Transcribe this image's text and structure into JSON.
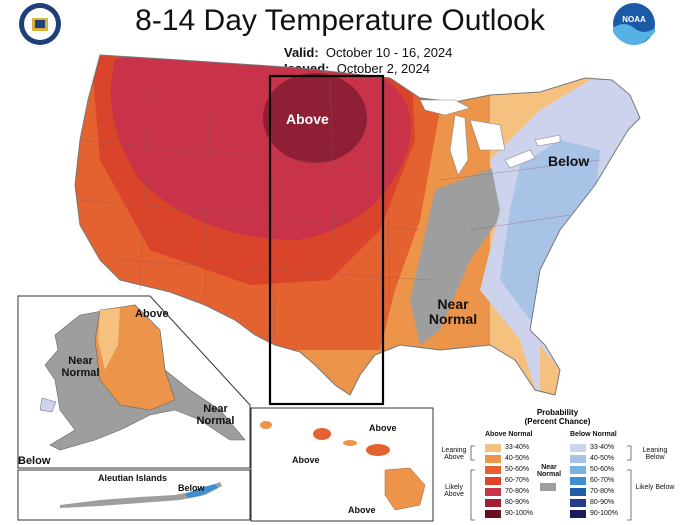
{
  "header": {
    "title": "8-14 Day Temperature Outlook",
    "valid_label": "Valid:",
    "valid_value": "October 10 - 16, 2024",
    "issued_label": "Issued:",
    "issued_value": "October 2, 2024",
    "left_logo_icon": "doc-seal-icon",
    "right_logo_icon": "noaa-logo-icon",
    "right_logo_text": "NOAA"
  },
  "map_labels": {
    "conus_above": "Above",
    "conus_below": "Below",
    "conus_near_normal": "Near Normal",
    "alaska_above": "Above",
    "alaska_near_normal_1": "Near Normal",
    "alaska_near_normal_2": "Near Normal",
    "alaska_below": "Below",
    "aleutian_title": "Aleutian Islands",
    "aleutian_below": "Below",
    "hawaii_above_1": "Above",
    "hawaii_above_2": "Above",
    "hawaii_above_3": "Above"
  },
  "legend": {
    "title": "Probability",
    "subtitle": "(Percent Chance)",
    "above_header": "Above Normal",
    "below_header": "Below Normal",
    "near_normal_label": "Near Normal",
    "leaning_above": "Leaning Above",
    "likely_above": "Likely Above",
    "leaning_below": "Leaning Below",
    "likely_below": "Likely Below",
    "above_bins": [
      {
        "range": "33-40%",
        "color": "#f6c07e"
      },
      {
        "range": "40-50%",
        "color": "#ec9449"
      },
      {
        "range": "50-60%",
        "color": "#e4622f"
      },
      {
        "range": "60-70%",
        "color": "#d9442b"
      },
      {
        "range": "70-80%",
        "color": "#c8334a"
      },
      {
        "range": "80-90%",
        "color": "#a01f34"
      },
      {
        "range": "90-100%",
        "color": "#6b0f1e"
      }
    ],
    "below_bins": [
      {
        "range": "33-40%",
        "color": "#cdd3ec"
      },
      {
        "range": "40-50%",
        "color": "#a9c3e6"
      },
      {
        "range": "50-60%",
        "color": "#78b2e0"
      },
      {
        "range": "60-70%",
        "color": "#3e8fd0"
      },
      {
        "range": "70-80%",
        "color": "#1f5ea8"
      },
      {
        "range": "80-90%",
        "color": "#243c8c"
      },
      {
        "range": "90-100%",
        "color": "#1a1a5c"
      }
    ],
    "near_normal_color": "#9e9e9e"
  }
}
